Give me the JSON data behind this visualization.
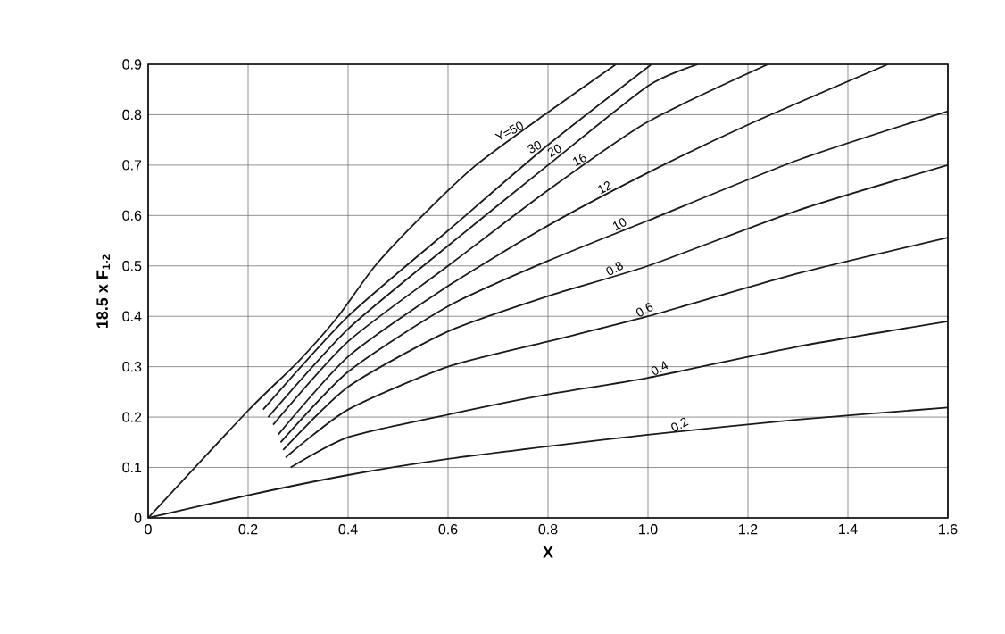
{
  "chart_data": {
    "type": "line",
    "xlabel": "X",
    "ylabel": "18.5 x F$_{1-2}$",
    "xlim": [
      0,
      1.6
    ],
    "ylim": [
      0,
      0.9
    ],
    "xticks": [
      0,
      0.2,
      0.4,
      0.6,
      0.8,
      {
        "value": 1.0,
        "label": "1.0"
      },
      1.2,
      1.4,
      1.6
    ],
    "yticks": [
      0,
      0.1,
      0.2,
      0.3,
      0.4,
      0.5,
      0.6,
      0.7,
      0.8,
      0.9
    ],
    "grid": true,
    "marker": "none",
    "line_style": "solid",
    "series": [
      {
        "color": "#1a1a1a",
        "x": [
          0,
          0.2,
          0.3,
          0.38,
          0.454,
          0.549,
          0.656,
          0.793,
          0.936
        ],
        "values": [
          0,
          0.213,
          0.31,
          0.4,
          0.5,
          0.6,
          0.7,
          0.8,
          0.9
        ]
      },
      {
        "color": "#1a1a1a",
        "x": [
          0.23,
          0.4,
          0.6,
          0.8,
          1.007
        ],
        "values": [
          0.215,
          0.4,
          0.57,
          0.74,
          0.9
        ]
      },
      {
        "color": "#1a1a1a",
        "x": [
          0.24,
          0.4,
          0.6,
          0.8,
          1.0,
          1.1
        ],
        "values": [
          0.2,
          0.375,
          0.54,
          0.7,
          0.857,
          0.9
        ]
      },
      {
        "color": "#1a1a1a",
        "x": [
          0.25,
          0.4,
          0.6,
          0.8,
          1.0,
          1.24
        ],
        "values": [
          0.185,
          0.35,
          0.5,
          0.65,
          0.786,
          0.9
        ]
      },
      {
        "color": "#1a1a1a",
        "x": [
          0.26,
          0.4,
          0.6,
          0.8,
          1.0,
          1.2,
          1.48
        ],
        "values": [
          0.165,
          0.32,
          0.46,
          0.58,
          0.685,
          0.78,
          0.9
        ]
      },
      {
        "color": "#1a1a1a",
        "x": [
          0.265,
          0.4,
          0.6,
          0.8,
          1.0,
          1.3,
          1.6
        ],
        "values": [
          0.15,
          0.29,
          0.42,
          0.51,
          0.59,
          0.71,
          0.807
        ]
      },
      {
        "color": "#1a1a1a",
        "x": [
          0.27,
          0.4,
          0.6,
          0.8,
          1.0,
          1.3,
          1.6
        ],
        "values": [
          0.135,
          0.26,
          0.37,
          0.44,
          0.5,
          0.61,
          0.7
        ]
      },
      {
        "color": "#1a1a1a",
        "x": [
          0.275,
          0.4,
          0.6,
          0.8,
          1.0,
          1.3,
          1.6
        ],
        "values": [
          0.12,
          0.215,
          0.3,
          0.35,
          0.4,
          0.485,
          0.556
        ]
      },
      {
        "color": "#1a1a1a",
        "x": [
          0.285,
          0.4,
          0.6,
          0.8,
          1.0,
          1.3,
          1.6
        ],
        "values": [
          0.1,
          0.16,
          0.205,
          0.245,
          0.278,
          0.34,
          0.39
        ]
      },
      {
        "color": "#1a1a1a",
        "x": [
          0,
          0.2,
          0.4,
          0.6,
          0.8,
          1.0,
          1.3,
          1.6
        ],
        "values": [
          0,
          0.045,
          0.085,
          0.117,
          0.142,
          0.165,
          0.195,
          0.219
        ]
      }
    ],
    "annotations": [
      {
        "text": "Y=50",
        "x": 0.73,
        "y": 0.754
      },
      {
        "text": "30",
        "x": 0.78,
        "y": 0.723
      },
      {
        "text": "20",
        "x": 0.82,
        "y": 0.716
      },
      {
        "text": "16",
        "x": 0.87,
        "y": 0.698
      },
      {
        "text": "12",
        "x": 0.92,
        "y": 0.643
      },
      {
        "text": "10",
        "x": 0.95,
        "y": 0.57
      },
      {
        "text": "0.8",
        "x": 0.94,
        "y": 0.482
      },
      {
        "text": "0.6",
        "x": 1.0,
        "y": 0.4
      },
      {
        "text": "0.4",
        "x": 1.03,
        "y": 0.284
      },
      {
        "text": "0.2",
        "x": 1.07,
        "y": 0.172
      }
    ]
  }
}
